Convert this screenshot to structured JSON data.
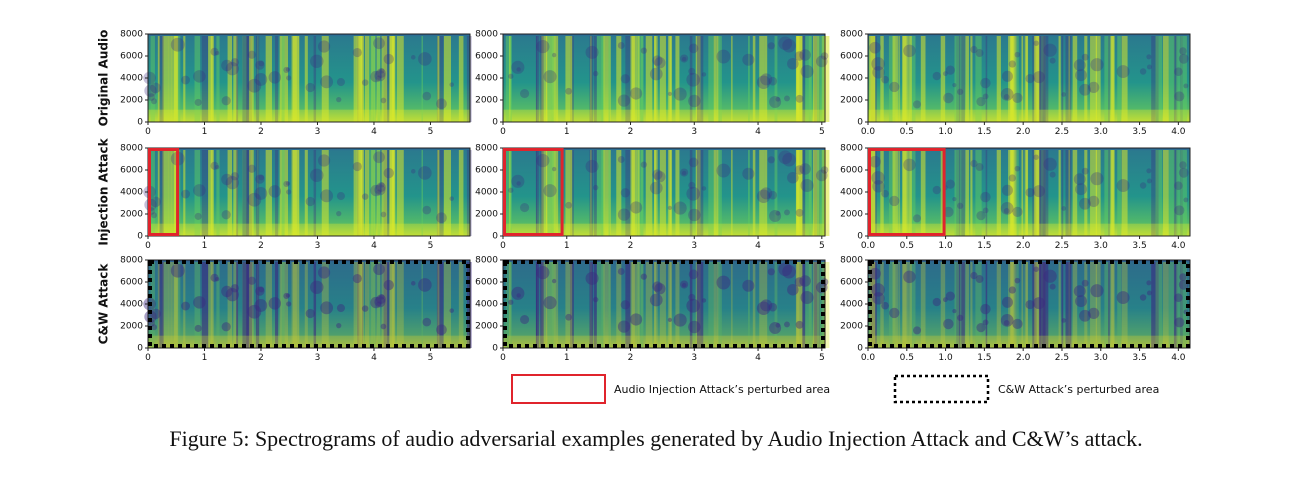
{
  "caption": "Figure 5: Spectrograms of audio adversarial examples generated by Audio Injection Attack and C&W’s attack.",
  "row_labels": [
    "Original Audio",
    "Injection Attack",
    "C&W Attack"
  ],
  "legend": {
    "injection": "Audio Injection Attack’s perturbed area",
    "cw": "C&W Attack’s perturbed area"
  },
  "colors": {
    "injection_box": "#e0242c",
    "cw_box": "#000000",
    "colormap": [
      "#3b2a80",
      "#2f5a9a",
      "#21908d",
      "#5ec962",
      "#d9e82a"
    ]
  },
  "chart_data": [
    {
      "type": "heatmap",
      "name": "spectrogram",
      "column": 1,
      "ylim": [
        0,
        8000
      ],
      "yticks": [
        "0",
        "2000",
        "4000",
        "6000",
        "8000"
      ],
      "xlim": [
        0,
        5.7
      ],
      "xticks": [
        "0",
        "1",
        "2",
        "3",
        "4",
        "5"
      ],
      "panels": [
        {
          "row": "Original Audio"
        },
        {
          "row": "Injection Attack",
          "perturbed_area": {
            "kind": "injection",
            "x": [
              0,
              0.55
            ],
            "y": [
              0,
              8000
            ]
          }
        },
        {
          "row": "C&W Attack",
          "perturbed_area": {
            "kind": "cw",
            "x": [
              0,
              5.7
            ],
            "y": [
              0,
              8000
            ]
          }
        }
      ]
    },
    {
      "type": "heatmap",
      "name": "spectrogram",
      "column": 2,
      "ylim": [
        0,
        8000
      ],
      "yticks": [
        "0",
        "2000",
        "4000",
        "6000",
        "8000"
      ],
      "xlim": [
        0,
        5.05
      ],
      "xticks": [
        "0",
        "1",
        "2",
        "3",
        "4",
        "5"
      ],
      "panels": [
        {
          "row": "Original Audio"
        },
        {
          "row": "Injection Attack",
          "perturbed_area": {
            "kind": "injection",
            "x": [
              0,
              0.95
            ],
            "y": [
              0,
              8000
            ]
          }
        },
        {
          "row": "C&W Attack",
          "perturbed_area": {
            "kind": "cw",
            "x": [
              0,
              5.05
            ],
            "y": [
              0,
              8000
            ]
          }
        }
      ]
    },
    {
      "type": "heatmap",
      "name": "spectrogram",
      "column": 3,
      "ylim": [
        0,
        8000
      ],
      "yticks": [
        "0",
        "2000",
        "4000",
        "6000",
        "8000"
      ],
      "xlim": [
        0,
        4.15
      ],
      "xticks": [
        "0.0",
        "0.5",
        "1.0",
        "1.5",
        "2.0",
        "2.5",
        "3.0",
        "3.5",
        "4.0"
      ],
      "panels": [
        {
          "row": "Original Audio"
        },
        {
          "row": "Injection Attack",
          "perturbed_area": {
            "kind": "injection",
            "x": [
              0,
              1.0
            ],
            "y": [
              0,
              8000
            ]
          }
        },
        {
          "row": "C&W Attack",
          "perturbed_area": {
            "kind": "cw",
            "x": [
              0,
              4.15
            ],
            "y": [
              0,
              8000
            ]
          }
        }
      ]
    }
  ]
}
